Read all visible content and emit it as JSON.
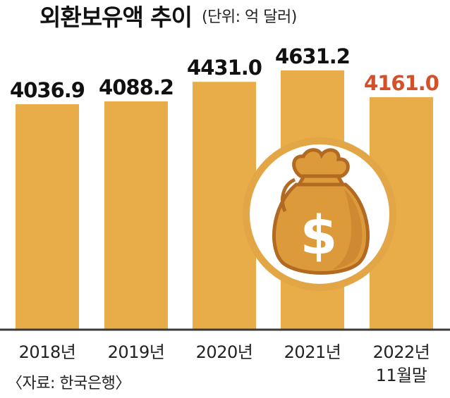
{
  "title": "외환보유액 추이",
  "unit": "(단위: 억 달러)",
  "source": "〈자료: 한국은행〉",
  "colors": {
    "bar": "#E8AC49",
    "highlight_label": "#D4502A",
    "label": "#111111",
    "axis_line": "#3A3A3A",
    "circle_fill": "#FFFFFF",
    "circle_stroke": "#E2A646",
    "bag": "#DD9A3A",
    "bag_dark": "#B26A22"
  },
  "icon": "money-bag-icon",
  "chart_data": {
    "type": "bar",
    "title": "외환보유액 추이",
    "unit": "억 달러",
    "categories": [
      "2018년",
      "2019년",
      "2020년",
      "2021년",
      "2022년\n11월말"
    ],
    "values": [
      4036.9,
      4088.2,
      4431.0,
      4631.2,
      4161.0
    ],
    "value_labels": [
      "4036.9",
      "4088.2",
      "4431.0",
      "4631.2",
      "4161.0"
    ],
    "highlight_index": 4,
    "grid": false,
    "legend": "none"
  }
}
